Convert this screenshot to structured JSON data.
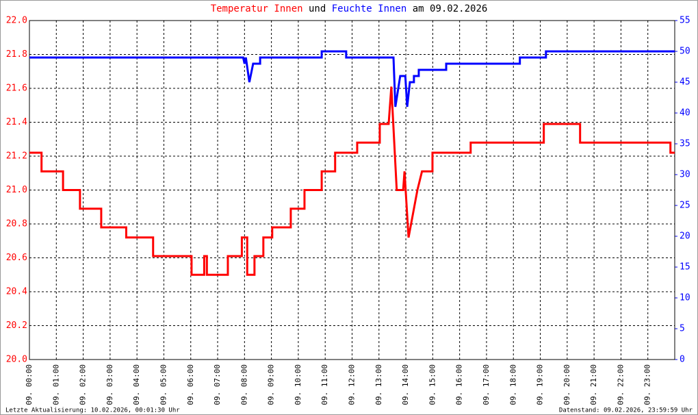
{
  "chart_data": {
    "type": "line",
    "title_joiner": "und",
    "title_suffix": "am 09.02.2026",
    "footer_left": "Letzte Aktualisierung: 10.02.2026, 00:01:30 Uhr",
    "footer_right": "Datenstand: 09.02.2026, 23:59:59 Uhr",
    "grid": true,
    "xlim": [
      0,
      24
    ],
    "xticks": [
      {
        "value": 0,
        "label": "09. 00:00"
      },
      {
        "value": 1,
        "label": "09. 01:00"
      },
      {
        "value": 2,
        "label": "09. 02:00"
      },
      {
        "value": 3,
        "label": "09. 03:00"
      },
      {
        "value": 4,
        "label": "09. 04:00"
      },
      {
        "value": 5,
        "label": "09. 05:00"
      },
      {
        "value": 6,
        "label": "09. 06:00"
      },
      {
        "value": 7,
        "label": "09. 07:00"
      },
      {
        "value": 8,
        "label": "09. 08:00"
      },
      {
        "value": 9,
        "label": "09. 09:00"
      },
      {
        "value": 10,
        "label": "09. 10:00"
      },
      {
        "value": 11,
        "label": "09. 11:00"
      },
      {
        "value": 12,
        "label": "09. 12:00"
      },
      {
        "value": 13,
        "label": "09. 13:00"
      },
      {
        "value": 14,
        "label": "09. 14:00"
      },
      {
        "value": 15,
        "label": "09. 15:00"
      },
      {
        "value": 16,
        "label": "09. 16:00"
      },
      {
        "value": 17,
        "label": "09. 17:00"
      },
      {
        "value": 18,
        "label": "09. 18:00"
      },
      {
        "value": 19,
        "label": "09. 19:00"
      },
      {
        "value": 20,
        "label": "09. 20:00"
      },
      {
        "value": 21,
        "label": "09. 21:00"
      },
      {
        "value": 22,
        "label": "09. 22:00"
      },
      {
        "value": 23,
        "label": "09. 23:00"
      }
    ],
    "ylim": [
      20,
      22
    ],
    "yticks": [
      {
        "value": 20,
        "label": "20.0"
      },
      20.2,
      20.4,
      20.6,
      20.8,
      {
        "value": 21,
        "label": "21.0"
      },
      21.2,
      21.4,
      21.6,
      21.8,
      {
        "value": 22,
        "label": "22.0"
      }
    ],
    "y2lim": [
      0,
      55
    ],
    "y2ticks": [
      0,
      5,
      10,
      15,
      20,
      25,
      30,
      35,
      40,
      45,
      50,
      55
    ],
    "series": [
      {
        "name": "Temperatur Innen",
        "color": "#ff0000",
        "x": [
          0,
          0.45,
          0.45,
          1.25,
          1.25,
          1.88,
          1.88,
          2.67,
          2.67,
          3.6,
          3.6,
          4.6,
          4.6,
          6.03,
          6.03,
          6.5,
          6.5,
          6.6,
          6.6,
          7.38,
          7.38,
          7.9,
          7.9,
          8.1,
          8.1,
          8.37,
          8.37,
          8.7,
          8.7,
          9.03,
          9.03,
          9.72,
          9.72,
          10.23,
          10.23,
          10.87,
          10.87,
          11.37,
          11.37,
          12.19,
          12.19,
          13.03,
          13.03,
          13.36,
          13.46,
          13.66,
          13.9,
          13.95,
          14.1,
          14.3,
          14.43,
          14.6,
          14.99,
          14.99,
          16.41,
          16.41,
          19.13,
          19.13,
          20.48,
          20.48,
          23.84,
          23.84,
          24
        ],
        "values": [
          21.22,
          21.22,
          21.11,
          21.11,
          21.0,
          21.0,
          20.89,
          20.89,
          20.78,
          20.78,
          20.72,
          20.72,
          20.61,
          20.61,
          20.5,
          20.5,
          20.61,
          20.61,
          20.5,
          20.5,
          20.61,
          20.61,
          20.72,
          20.72,
          20.5,
          20.5,
          20.61,
          20.61,
          20.72,
          20.72,
          20.78,
          20.78,
          20.89,
          20.89,
          21.0,
          21.0,
          21.11,
          21.11,
          21.22,
          21.22,
          21.28,
          21.28,
          21.39,
          21.39,
          21.61,
          21.0,
          21.0,
          21.11,
          20.72,
          20.89,
          21.0,
          21.11,
          21.11,
          21.22,
          21.22,
          21.28,
          21.28,
          21.39,
          21.39,
          21.28,
          21.28,
          21.22,
          21.22
        ]
      },
      {
        "name": "Feuchte Innen",
        "color": "#0000ff",
        "axis": "y2",
        "x": [
          0,
          7.95,
          8.0,
          8.05,
          8.18,
          8.32,
          8.58,
          8.58,
          10.87,
          10.87,
          11.78,
          11.78,
          13.54,
          13.61,
          13.79,
          13.98,
          14.05,
          14.15,
          14.3,
          14.3,
          14.48,
          14.48,
          15.5,
          15.5,
          18.24,
          18.24,
          19.21,
          19.21,
          24
        ],
        "values": [
          49,
          49,
          48,
          49,
          45,
          48,
          48,
          49,
          49,
          50,
          50,
          49,
          49,
          41,
          46,
          46,
          41,
          45,
          45,
          46,
          46,
          47,
          47,
          48,
          48,
          49,
          49,
          50,
          50
        ]
      }
    ]
  }
}
